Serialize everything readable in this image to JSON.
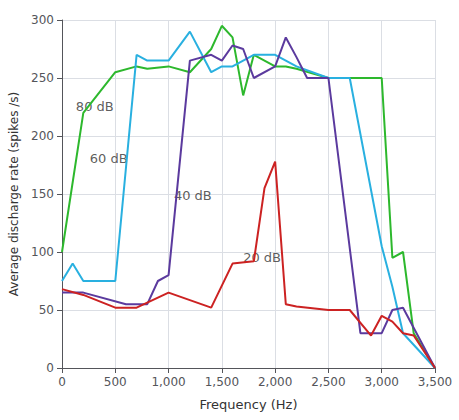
{
  "chart_data": {
    "type": "line",
    "xlabel": "Frequency (Hz)",
    "ylabel": "Average discharge rate (spikes /s)",
    "xlim": [
      0,
      3500
    ],
    "ylim": [
      0,
      300
    ],
    "xticks": [
      0,
      500,
      1000,
      1500,
      2000,
      2500,
      3000,
      3500
    ],
    "yticks": [
      0,
      50,
      100,
      150,
      200,
      250,
      300
    ],
    "grid": true,
    "series": [
      {
        "color": "#2db82d",
        "x": [
          0,
          200,
          500,
          700,
          800,
          1000,
          1200,
          1400,
          1500,
          1600,
          1700,
          1800,
          2000,
          2100,
          2200,
          2500,
          2700,
          3000,
          3100,
          3200,
          3300,
          3500
        ],
        "values": [
          100,
          220,
          255,
          260,
          258,
          260,
          255,
          275,
          295,
          285,
          235,
          270,
          260,
          260,
          258,
          250,
          250,
          250,
          95,
          100,
          30,
          0
        ]
      },
      {
        "color": "#29b0e0",
        "x": [
          0,
          100,
          200,
          500,
          700,
          800,
          1000,
          1200,
          1400,
          1500,
          1600,
          1800,
          2000,
          2100,
          2200,
          2500,
          2700,
          3000,
          3100,
          3200,
          3500
        ],
        "values": [
          75,
          90,
          75,
          75,
          270,
          265,
          265,
          290,
          255,
          260,
          260,
          270,
          270,
          265,
          260,
          250,
          250,
          105,
          70,
          30,
          0
        ]
      },
      {
        "color": "#5b3a9e",
        "x": [
          0,
          200,
          600,
          800,
          900,
          1000,
          1200,
          1400,
          1500,
          1600,
          1700,
          1800,
          2000,
          2100,
          2200,
          2300,
          2500,
          2800,
          3000,
          3100,
          3200,
          3500
        ],
        "values": [
          65,
          65,
          55,
          55,
          75,
          80,
          265,
          270,
          265,
          278,
          275,
          250,
          260,
          285,
          268,
          250,
          250,
          30,
          30,
          50,
          52,
          0
        ]
      },
      {
        "color": "#cc2222",
        "x": [
          0,
          200,
          500,
          700,
          1000,
          1400,
          1600,
          1800,
          1900,
          2000,
          2100,
          2200,
          2500,
          2700,
          2900,
          3000,
          3100,
          3200,
          3300,
          3500
        ],
        "values": [
          68,
          63,
          52,
          52,
          65,
          52,
          90,
          92,
          155,
          178,
          55,
          53,
          50,
          50,
          28,
          45,
          40,
          30,
          28,
          0
        ]
      }
    ],
    "annotations": [
      {
        "text": "80 dB",
        "x": 130,
        "y": 220
      },
      {
        "text": "60 dB",
        "x": 260,
        "y": 175
      },
      {
        "text": "40 dB",
        "x": 1050,
        "y": 143
      },
      {
        "text": "20 dB",
        "x": 1700,
        "y": 90
      }
    ]
  }
}
